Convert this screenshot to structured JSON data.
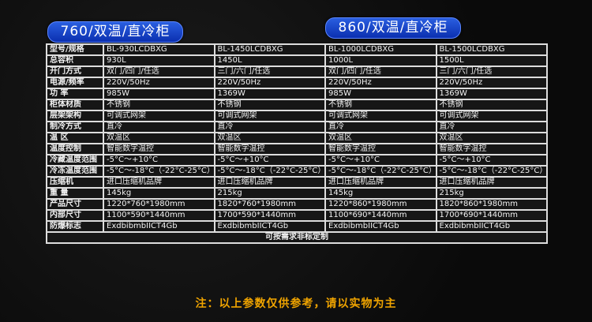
{
  "headers": [
    "760/双温/直冷柜",
    "860/双温/直冷柜"
  ],
  "rows": [
    {
      "label": "型号/规格",
      "values": [
        "BL-930LCDBXG",
        "BL-1450LCDBXG",
        "BL-1000LCDBXG",
        "BL-1500LCDBXG"
      ]
    },
    {
      "label": "总容积",
      "values": [
        "930L",
        "1450L",
        "1000L",
        "1500L"
      ]
    },
    {
      "label": "开门方式",
      "values": [
        "双门/四门/任选",
        "三门/六门/任选",
        "双门/四门/任选",
        "三门/六门/任选"
      ]
    },
    {
      "label": "电源/频率",
      "values": [
        "220V/50Hz",
        "220V/50Hz",
        "220V/50Hz",
        "220V/50Hz"
      ]
    },
    {
      "label": "功  率",
      "values": [
        "985W",
        "1369W",
        "985W",
        "1369W"
      ]
    },
    {
      "label": "柜体材质",
      "values": [
        "不锈钢",
        "不锈钢",
        "不锈钢",
        "不锈钢"
      ]
    },
    {
      "label": "层架架构",
      "values": [
        "可调式网架",
        "可调式网架",
        "可调式网架",
        "可调式网架"
      ]
    },
    {
      "label": "制冷方式",
      "values": [
        "直冷",
        "直冷",
        "直冷",
        "直冷"
      ]
    },
    {
      "label": "温  区",
      "values": [
        "双温区",
        "双温区",
        "双温区",
        "双温区"
      ]
    },
    {
      "label": "温度控制",
      "values": [
        "智能数字温控",
        "智能数字温控",
        "智能数字温控",
        "智能数字温控"
      ]
    },
    {
      "label": "冷藏温度范围",
      "values": [
        "-5°C〜+10°C",
        "-5°C〜+10°C",
        "-5°C〜+10°C",
        "-5°C〜+10°C"
      ]
    },
    {
      "label": "冷冻温度范围",
      "values": [
        "-5°C〜-18°C（-22°C-25°C）",
        "-5°C〜-18°C（-22°C-25°C）",
        "-5°C〜-18°C（-22°C-25°C）",
        "-5°C〜-18°C（-22°C-25°C）"
      ]
    },
    {
      "label": "压缩机",
      "values": [
        "进口压缩机品牌",
        "进口压缩机品牌",
        "进口压缩机品牌",
        "进口压缩机品牌"
      ]
    },
    {
      "label": "重  量",
      "values": [
        "145kg",
        "215kg",
        "145kg",
        "215kg"
      ]
    },
    {
      "label": "产品尺寸",
      "values": [
        "1220*760*1980mm",
        "1820*760*1980mm",
        "1220*860*1980mm",
        "1820*860*1980mm"
      ]
    },
    {
      "label": "内部尺寸",
      "values": [
        "1100*590*1440mm",
        "1700*590*1440mm",
        "1100*690*1440mm",
        "1700*690*1440mm"
      ]
    },
    {
      "label": "防爆标志",
      "values": [
        "ExdbibmbIICT4Gb",
        "ExdbibmbIICT4Gb",
        "ExdbibmbIICT4Gb",
        "ExdbibmbIICT4Gb"
      ]
    }
  ],
  "footer": "可按需求非标定制",
  "note": "注：以上参数仅供参考，请以实物为主",
  "colors": {
    "pill": "#1a45d0",
    "note": "#f0a400"
  }
}
